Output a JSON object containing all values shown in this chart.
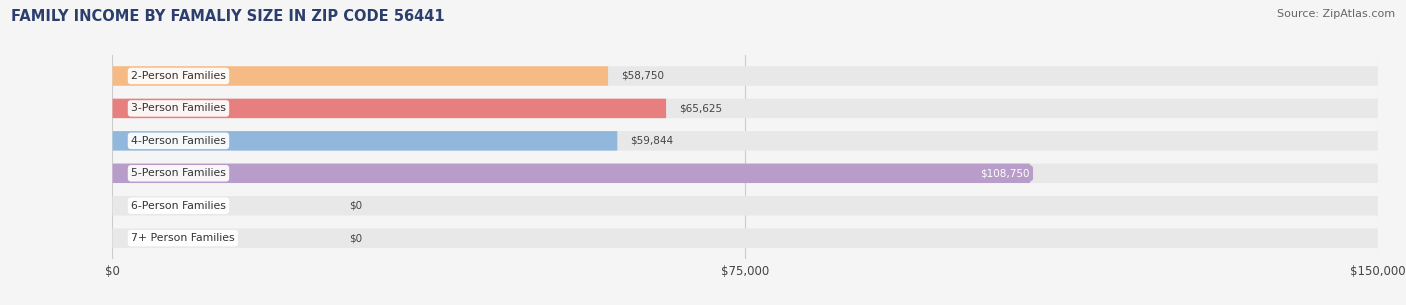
{
  "title": "FAMILY INCOME BY FAMALIY SIZE IN ZIP CODE 56441",
  "source": "Source: ZipAtlas.com",
  "categories": [
    "2-Person Families",
    "3-Person Families",
    "4-Person Families",
    "5-Person Families",
    "6-Person Families",
    "7+ Person Families"
  ],
  "values": [
    58750,
    65625,
    59844,
    108750,
    0,
    0
  ],
  "bar_colors": [
    "#f6ba84",
    "#e87f7f",
    "#91b8dc",
    "#b89cca",
    "#6ecece",
    "#c0bce8"
  ],
  "bar_bg_color": "#e8e8e8",
  "xlim": [
    0,
    150000
  ],
  "xticks": [
    0,
    75000,
    150000
  ],
  "xtick_labels": [
    "$0",
    "$75,000",
    "$150,000"
  ],
  "title_color": "#2c3e6b",
  "title_fontsize": 10.5,
  "source_fontsize": 8,
  "bar_height": 0.6,
  "figsize": [
    14.06,
    3.05
  ],
  "dpi": 100,
  "bg_color": "#f5f5f5",
  "value_labels": [
    "$58,750",
    "$65,625",
    "$59,844",
    "$108,750",
    "$0",
    "$0"
  ],
  "value_label_colors": [
    "#555555",
    "#555555",
    "#555555",
    "#ffffff",
    "#555555",
    "#555555"
  ],
  "value_label_bg": [
    null,
    null,
    null,
    "#b89cca",
    null,
    null
  ],
  "zero_bar_width": 10000
}
